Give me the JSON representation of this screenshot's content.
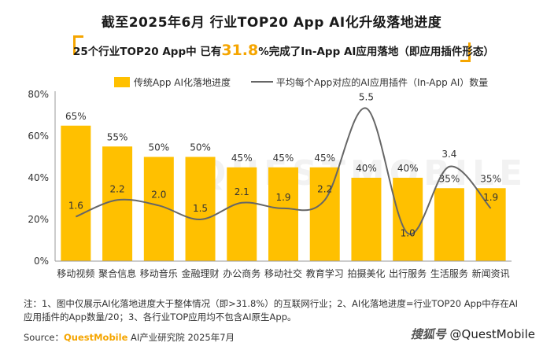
{
  "title": "截至2025年6月 行业TOP20 App AI化升级落地进度",
  "subtitle": {
    "before": "25个行业TOP20 App中 已有",
    "highlight": "31.8",
    "after": "%完成了In-App AI应用落地（即应用插件形态）"
  },
  "watermark": "QUESTMOBILE",
  "legend": {
    "bar": "传统App AI化落地进度",
    "line": "平均每个App对应的AI应用插件（In-App AI）数量"
  },
  "chart_data": {
    "type": "bar+line",
    "categories": [
      "移动视频",
      "聚合信息",
      "移动音乐",
      "金融理财",
      "办公商务",
      "移动社交",
      "教育学习",
      "拍摄美化",
      "出行服务",
      "生活服务",
      "新闻资讯"
    ],
    "bar_series": {
      "name": "传统App AI化落地进度",
      "values": [
        65,
        55,
        50,
        50,
        45,
        45,
        45,
        40,
        40,
        35,
        35
      ],
      "labels": [
        "65%",
        "55%",
        "50%",
        "50%",
        "45%",
        "45%",
        "45%",
        "40%",
        "40%",
        "35%",
        "35%"
      ]
    },
    "line_series": {
      "name": "平均每个App对应的AI应用插件（In-App AI）数量",
      "values": [
        1.6,
        2.2,
        2.0,
        1.5,
        2.1,
        1.9,
        2.2,
        5.5,
        1.0,
        3.4,
        1.9
      ],
      "labels": [
        "1.6",
        "2.2",
        "2.0",
        "1.5",
        "2.1",
        "1.9",
        "2.2",
        "5.5",
        "1.0",
        "3.4",
        "1.9"
      ]
    },
    "y_axis": {
      "min": 0,
      "max": 80,
      "ticks": [
        "0%",
        "20%",
        "40%",
        "60%",
        "80%"
      ]
    },
    "line_axis": {
      "min": 0,
      "max": 6
    },
    "bar_color": "#FFC000",
    "line_color": "#666666"
  },
  "note": "注：1、图中仅展示AI化落地进度大于整体情况（即>31.8%）的互联网行业；2、AI化落地进度=行业TOP20 App中存在AI应用插件的App数量/20；3、各行业TOP应用均不包含AI原生App。",
  "source": {
    "label": "Source：",
    "brand": "QuestMobile",
    "rest": " AI产业研究院 2025年7月"
  },
  "credit": {
    "platform": "搜狐号",
    "handle": "@QuestMobile"
  }
}
